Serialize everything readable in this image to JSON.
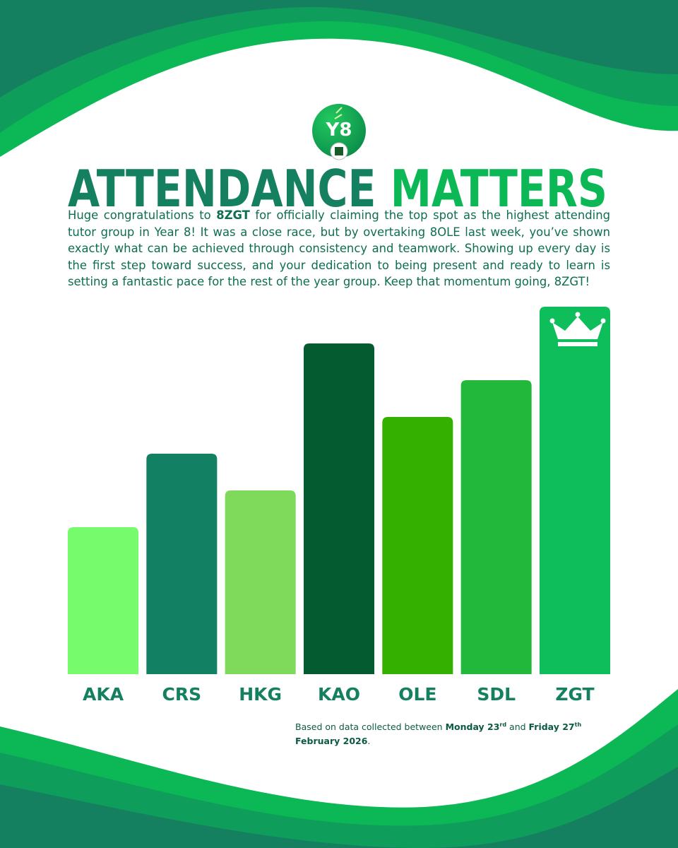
{
  "chart_data": {
    "type": "bar",
    "logo": "Y8",
    "title": [
      "ATTENDANCE",
      "MATTERS"
    ],
    "body": [
      "Huge congratulations to ",
      "8ZGT",
      " for officially claiming the top spot as the highest attending tutor group in Year 8! It was a close race, but by overtaking 8OLE last week, you’ve shown exactly what can be achieved through consistency and teamwork. Showing up every day is the first step toward success, and your dedication to being present and ready to learn is setting a fantastic pace for the rest of the year group. Keep that momentum going, 8ZGT!"
    ],
    "categories": [
      "AKA",
      "CRS",
      "HKG",
      "KAO",
      "OLE",
      "SDL",
      "ZGT"
    ],
    "values": [
      4,
      6,
      5,
      9,
      7,
      8,
      10
    ],
    "colors": [
      "#75fb6b",
      "#128062",
      "#7fd95a",
      "#045b30",
      "#33b000",
      "#22b83c",
      "#0ebe5a"
    ],
    "ylim": [
      0,
      10
    ],
    "footnote": [
      "Based on data collected between ",
      "Monday 23",
      "rd",
      " and ",
      "Friday 27",
      "th",
      " February 2026",
      "."
    ]
  }
}
